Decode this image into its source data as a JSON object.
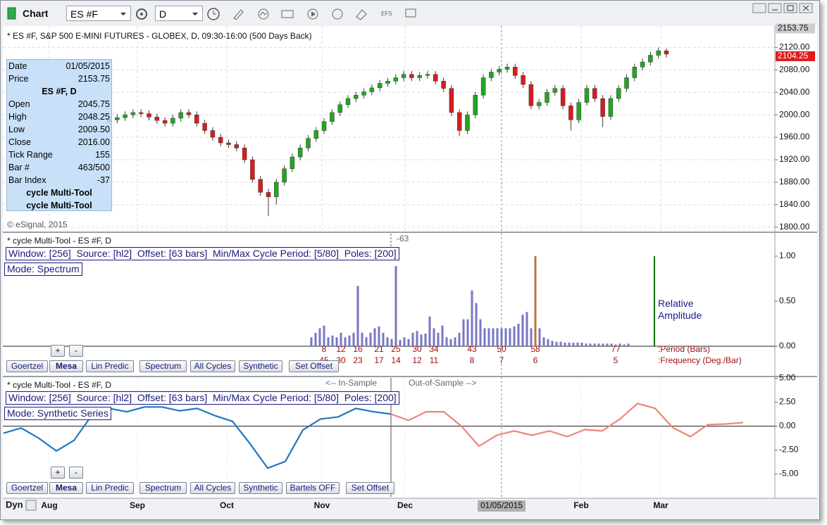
{
  "toolbar": {
    "title": "Chart",
    "symbol": "ES #F",
    "interval": "D",
    "efs": "EFS"
  },
  "data_window": {
    "rows": [
      [
        "Date",
        "01/05/2015"
      ],
      [
        "Price",
        "2153.75"
      ],
      [
        "ES #F, D"
      ],
      [
        "Open",
        "2045.75"
      ],
      [
        "High",
        "2048.25"
      ],
      [
        "Low",
        "2009.50"
      ],
      [
        "Close",
        "2016.00"
      ],
      [
        "Tick Range",
        "155"
      ],
      [
        "Bar #",
        "463/500"
      ],
      [
        "Bar Index",
        "-37"
      ],
      [
        "cycle Multi-Tool"
      ],
      [
        "cycle Multi-Tool"
      ]
    ]
  },
  "time_axis": {
    "ticks": [
      "Aug",
      "Sep",
      "Oct",
      "Nov",
      "Dec",
      "Feb",
      "Mar"
    ],
    "cursor": "01/05/2015",
    "mode": "Dyn"
  },
  "chart_data": [
    {
      "type": "candlestick",
      "title": "* ES #F, S&P 500 E-MINI FUTURES - GLOBEX, D, 09:30-16:00 (500 Days Back)",
      "annotation": "© eSignal, 2015",
      "open": [
        1988,
        1991,
        1995,
        2000,
        2004,
        2002,
        1996,
        1990,
        1985,
        1994,
        2004,
        2000,
        1985,
        1972,
        1960,
        1950,
        1947,
        1941,
        1920,
        1885,
        1862,
        1854,
        1880,
        1904,
        1925,
        1941,
        1958,
        1972,
        1988,
        2004,
        2018,
        2029,
        2035,
        2041,
        2048,
        2056,
        2060,
        2066,
        2072,
        2066,
        2070,
        2072,
        2060,
        2047,
        2004,
        1972,
        2000,
        2035,
        2066,
        2076,
        2081,
        2085,
        2070,
        2054,
        2016,
        2022,
        2040,
        2047,
        2016,
        1991,
        2022,
        2047,
        2029,
        1997,
        2029,
        2047,
        2066,
        2085,
        2094,
        2106,
        2114
      ],
      "high": [
        1997,
        2001,
        2006,
        2010,
        2010,
        2008,
        2002,
        1996,
        2000,
        2010,
        2010,
        2006,
        1991,
        1978,
        1966,
        1956,
        1953,
        1947,
        1926,
        1891,
        1868,
        1886,
        1910,
        1931,
        1947,
        1964,
        1978,
        1994,
        2010,
        2024,
        2035,
        2041,
        2047,
        2054,
        2062,
        2066,
        2072,
        2078,
        2078,
        2076,
        2078,
        2078,
        2066,
        2053,
        2010,
        2006,
        2041,
        2072,
        2082,
        2087,
        2091,
        2091,
        2076,
        2060,
        2028,
        2046,
        2053,
        2053,
        2022,
        2028,
        2053,
        2053,
        2035,
        2035,
        2053,
        2072,
        2091,
        2100,
        2112,
        2120,
        2118
      ],
      "low": [
        1982,
        1985,
        1989,
        1994,
        1996,
        1990,
        1984,
        1979,
        1979,
        1988,
        1994,
        1979,
        1966,
        1954,
        1944,
        1941,
        1935,
        1914,
        1879,
        1856,
        1820,
        1840,
        1874,
        1898,
        1919,
        1935,
        1952,
        1966,
        1982,
        1998,
        2012,
        2023,
        2029,
        2035,
        2042,
        2050,
        2054,
        2060,
        2060,
        2060,
        2064,
        2054,
        2041,
        1998,
        1962,
        1966,
        1994,
        2029,
        2060,
        2070,
        2075,
        2064,
        2048,
        2010,
        2010,
        2016,
        2034,
        2010,
        1972,
        1985,
        2016,
        2023,
        1978,
        1991,
        2023,
        2041,
        2060,
        2079,
        2088,
        2100,
        2102
      ],
      "close": [
        1991,
        1995,
        2000,
        2004,
        2002,
        1996,
        1990,
        1985,
        1994,
        2004,
        2000,
        1985,
        1972,
        1960,
        1950,
        1947,
        1941,
        1920,
        1885,
        1862,
        1854,
        1880,
        1904,
        1925,
        1941,
        1958,
        1972,
        1988,
        2004,
        2018,
        2029,
        2035,
        2041,
        2048,
        2056,
        2060,
        2066,
        2072,
        2066,
        2070,
        2072,
        2060,
        2047,
        2004,
        1972,
        2000,
        2035,
        2066,
        2076,
        2081,
        2085,
        2070,
        2054,
        2016,
        2022,
        2040,
        2047,
        2016,
        1991,
        2022,
        2047,
        2029,
        1997,
        2029,
        2047,
        2066,
        2085,
        2094,
        2106,
        2114,
        2108
      ],
      "up_color": "#1fa81f",
      "down_color": "#d81c1c",
      "wick_color": "#3a3a3a",
      "ylim": [
        1791,
        2158
      ],
      "yticks": [
        {
          "value": 1800,
          "label": "1800.00"
        },
        {
          "value": 1840,
          "label": "1840.00"
        },
        {
          "value": 1880,
          "label": "1880.00"
        },
        {
          "value": 1920,
          "label": "1920.00"
        },
        {
          "value": 1960,
          "label": "1960.00"
        },
        {
          "value": 2000,
          "label": "2000.00"
        },
        {
          "value": 2040,
          "label": "2040.00"
        },
        {
          "value": 2080,
          "label": "2080.00"
        },
        {
          "value": 2120,
          "label": "2120.00"
        }
      ],
      "grid": true,
      "price_markers": [
        {
          "value": 2153.75,
          "label": "2153.75",
          "color": "#cfcfcf",
          "text_color": "#111111"
        },
        {
          "value": 2104.25,
          "label": "2104.25",
          "color": "#e01b1b",
          "text_color": "#ffffff"
        }
      ]
    },
    {
      "type": "bar",
      "title": "* cycle Multi-Tool - ES #F, D",
      "settings": "Window: [256]  Source: [hl2]  Offset: [63 bars]  Min/Max Cycle Period: [5/80]  Poles: [200]",
      "mode": "Mode: Spectrum",
      "offset_label": "-63",
      "categories": [
        null,
        null,
        null,
        "8",
        null,
        null,
        null,
        "12",
        null,
        null,
        null,
        "16",
        null,
        null,
        null,
        null,
        "21",
        null,
        null,
        null,
        "25",
        null,
        null,
        null,
        null,
        "30",
        null,
        null,
        null,
        "34",
        null,
        null,
        null,
        null,
        null,
        null,
        null,
        null,
        "43",
        null,
        null,
        null,
        null,
        null,
        null,
        "50",
        null,
        null,
        null,
        null,
        null,
        null,
        null,
        "58",
        null,
        null,
        null,
        null,
        null,
        null,
        null,
        null,
        null,
        null,
        null,
        null,
        null,
        null,
        null,
        null,
        null,
        null,
        "77",
        null,
        null,
        null
      ],
      "frequency_labels": [
        null,
        null,
        null,
        "45",
        null,
        null,
        null,
        "30",
        null,
        null,
        null,
        "23",
        null,
        null,
        null,
        null,
        "17",
        null,
        null,
        null,
        "14",
        null,
        null,
        null,
        null,
        "12",
        null,
        null,
        null,
        "11",
        null,
        null,
        null,
        null,
        null,
        null,
        null,
        null,
        "8",
        null,
        null,
        null,
        null,
        null,
        null,
        "7",
        null,
        null,
        null,
        null,
        null,
        null,
        null,
        "6",
        null,
        null,
        null,
        null,
        null,
        null,
        null,
        null,
        null,
        null,
        null,
        null,
        null,
        null,
        null,
        null,
        null,
        null,
        "5",
        null,
        null,
        null
      ],
      "values": [
        0.1,
        0.15,
        0.2,
        0.23,
        0.1,
        0.12,
        0.1,
        0.15,
        0.1,
        0.12,
        0.15,
        0.67,
        0.15,
        0.1,
        0.15,
        0.2,
        0.22,
        0.15,
        0.1,
        0.08,
        0.89,
        0.07,
        0.1,
        0.08,
        0.15,
        0.17,
        0.13,
        0.14,
        0.33,
        0.2,
        0.15,
        0.23,
        0.1,
        0.08,
        0.1,
        0.15,
        0.3,
        0.3,
        0.62,
        0.48,
        0.3,
        0.2,
        0.2,
        0.2,
        0.2,
        0.2,
        0.2,
        0.2,
        0.22,
        0.25,
        0.35,
        0.38,
        0.2,
        1.0,
        0.2,
        0.1,
        0.08,
        0.06,
        0.05,
        0.05,
        0.04,
        0.04,
        0.04,
        0.04,
        0.04,
        0.03,
        0.03,
        0.03,
        0.03,
        0.03,
        0.03,
        0.03,
        0.02,
        0.03,
        0.02,
        0.03
      ],
      "colors": [
        "#7777c4",
        "#7777c4",
        "#7777c4",
        "#7777c4",
        "#7777c4",
        "#7777c4",
        "#7777c4",
        "#7777c4",
        "#7777c4",
        "#7777c4",
        "#7777c4",
        "#7777c4",
        "#7777c4",
        "#7777c4",
        "#7777c4",
        "#7777c4",
        "#7777c4",
        "#7777c4",
        "#7777c4",
        "#7777c4",
        "#7777c4",
        "#7777c4",
        "#7777c4",
        "#7777c4",
        "#7777c4",
        "#7777c4",
        "#7777c4",
        "#7777c4",
        "#7777c4",
        "#7777c4",
        "#7777c4",
        "#7777c4",
        "#7777c4",
        "#7777c4",
        "#7777c4",
        "#7777c4",
        "#7777c4",
        "#7777c4",
        "#7777c4",
        "#7777c4",
        "#7777c4",
        "#7777c4",
        "#7777c4",
        "#7777c4",
        "#7777c4",
        "#7777c4",
        "#7777c4",
        "#7777c4",
        "#7777c4",
        "#7777c4",
        "#7777c4",
        "#7777c4",
        "#7777c4",
        "#c0703a",
        "#7777c4",
        "#7777c4",
        "#7777c4",
        "#7777c4",
        "#7777c4",
        "#7777c4",
        "#7777c4",
        "#7777c4",
        "#7777c4",
        "#7777c4",
        "#7777c4",
        "#7777c4",
        "#7777c4",
        "#7777c4",
        "#7777c4",
        "#7777c4",
        "#7777c4",
        "#7777c4",
        "#7777c4",
        "#7777c4",
        "#7777c4",
        "#7777c4"
      ],
      "label_color": "#a01010",
      "row_labels": [
        ":Period (Bars)",
        ":Frequency (Deg./Bar)"
      ],
      "reference": {
        "value": 1,
        "label": "Relative Amplitude",
        "color": "#007000"
      },
      "ylim": [
        -0.32,
        1.25
      ],
      "yticks": [
        {
          "value": 0,
          "label": "0.00"
        },
        {
          "value": 0.5,
          "label": "0.50"
        },
        {
          "value": 1,
          "label": "1.00"
        }
      ],
      "zoom_buttons": [
        "+",
        "-"
      ],
      "buttons": [
        "Goertzel",
        "Mesa",
        "Lin Predic",
        "Spectrum",
        "All Cycles",
        "Synthetic",
        "Set Offset"
      ]
    },
    {
      "type": "line",
      "title": "* cycle Multi-Tool - ES #F, D",
      "settings": "Window: [256]  Source: [hl2]  Offset: [63 bars]  Min/Max Cycle Period: [5/80]  Poles: [200]",
      "mode": "Mode: Synthetic Series",
      "series": [
        {
          "name": "<-- In-Sample",
          "color": "#1f77c0",
          "values": [
            -0.74,
            -0.2,
            -1.26,
            -2.6,
            -1.5,
            1.1,
            1.85,
            1.5,
            2.0,
            2.0,
            1.6,
            1.85,
            1.1,
            0.5,
            -1.85,
            -4.4,
            -3.7,
            -0.4,
            0.74,
            0.96,
            1.85,
            1.5,
            1.26
          ]
        },
        {
          "name": "Out-of-Sample -->",
          "color": "#f08478",
          "values": [
            1.26,
            0.6,
            1.5,
            1.5,
            0,
            -2.1,
            -0.96,
            -0.5,
            -0.96,
            -0.5,
            -1.1,
            -0.37,
            -0.5,
            0.74,
            2.37,
            1.85,
            -0.15,
            -1.1,
            0.15,
            0.22,
            0.37
          ]
        }
      ],
      "ylim": [
        -7.4,
        5.04
      ],
      "yticks": [
        {
          "value": 5,
          "label": "5.00"
        },
        {
          "value": 2.5,
          "label": "2.50"
        },
        {
          "value": 0,
          "label": "0.00"
        },
        {
          "value": -2.5,
          "label": "-2.50"
        },
        {
          "value": -5,
          "label": "-5.00"
        }
      ],
      "zoom_buttons": [
        "+",
        "-"
      ],
      "buttons": [
        "Goertzel",
        "Mesa",
        "Lin Predic",
        "Spectrum",
        "All Cycles",
        "Synthetic",
        "Bartels OFF",
        "Set Offset"
      ]
    }
  ]
}
